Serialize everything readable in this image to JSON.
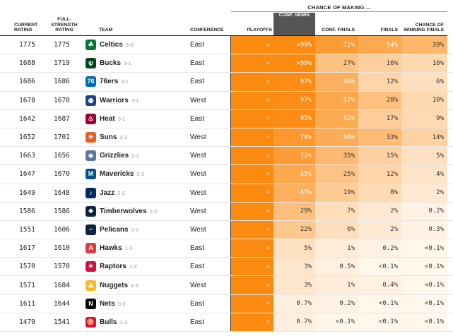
{
  "header": {
    "super_label": "CHANCE OF MAKING ...",
    "current_rating": "CURRENT RATING",
    "full_strength": "FULL-STRENGTH RATING",
    "team": "TEAM",
    "conference": "CONFERENCE",
    "playoffs": "PLAYOFFS",
    "conf_semis": "CONF. SEMIS",
    "conf_finals": "CONF. FINALS",
    "finals": "FINALS",
    "win_finals": "CHANCE OF WINNING FINALS"
  },
  "colors": {
    "heat_max": "#fb8a11",
    "heat_min": "#fff6ec",
    "sorted_header": "#555555"
  },
  "teams": [
    {
      "current": "1775",
      "full": "1775",
      "name": "Celtics",
      "record": "3-0",
      "conference": "East",
      "playoffs": "✓",
      "semis": ">99%",
      "conf_finals": "72%",
      "finals": "54%",
      "win": "39%",
      "logo": "☘",
      "logo_color": "#007a33",
      "heat": [
        100,
        100,
        72,
        54,
        39
      ]
    },
    {
      "current": "1688",
      "full": "1719",
      "name": "Bucks",
      "record": "3-1",
      "conference": "East",
      "playoffs": "✓",
      "semis": ">99%",
      "conf_finals": "27%",
      "finals": "16%",
      "win": "10%",
      "logo": "ψ",
      "logo_color": "#00471b",
      "heat": [
        100,
        100,
        27,
        16,
        10
      ]
    },
    {
      "current": "1686",
      "full": "1686",
      "name": "76ers",
      "record": "3-1",
      "conference": "East",
      "playoffs": "✓",
      "semis": "97%",
      "conf_finals": "46%",
      "finals": "12%",
      "win": "6%",
      "logo": "76",
      "logo_color": "#006bb6",
      "heat": [
        100,
        97,
        46,
        12,
        6
      ]
    },
    {
      "current": "1678",
      "full": "1670",
      "name": "Warriors",
      "record": "3-1",
      "conference": "West",
      "playoffs": "✓",
      "semis": "97%",
      "conf_finals": "57%",
      "finals": "28%",
      "win": "10%",
      "logo": "◉",
      "logo_color": "#1d428a",
      "heat": [
        100,
        97,
        57,
        28,
        10
      ]
    },
    {
      "current": "1642",
      "full": "1687",
      "name": "Heat",
      "record": "3-1",
      "conference": "East",
      "playoffs": "✓",
      "semis": "95%",
      "conf_finals": "52%",
      "finals": "17%",
      "win": "9%",
      "logo": "♨",
      "logo_color": "#98002e",
      "heat": [
        100,
        95,
        52,
        17,
        9
      ]
    },
    {
      "current": "1652",
      "full": "1701",
      "name": "Suns",
      "record": "2-2",
      "conference": "West",
      "playoffs": "✓",
      "semis": "78%",
      "conf_finals": "50%",
      "finals": "33%",
      "win": "14%",
      "logo": "☀",
      "logo_color": "#e56020",
      "heat": [
        100,
        78,
        50,
        33,
        14
      ]
    },
    {
      "current": "1663",
      "full": "1656",
      "name": "Grizzlies",
      "record": "2-2",
      "conference": "West",
      "playoffs": "✓",
      "semis": "71%",
      "conf_finals": "35%",
      "finals": "15%",
      "win": "5%",
      "logo": "◆",
      "logo_color": "#5d76a9",
      "heat": [
        100,
        71,
        35,
        15,
        5
      ]
    },
    {
      "current": "1647",
      "full": "1670",
      "name": "Mavericks",
      "record": "2-2",
      "conference": "West",
      "playoffs": "✓",
      "semis": "55%",
      "conf_finals": "25%",
      "finals": "12%",
      "win": "4%",
      "logo": "M",
      "logo_color": "#00538c",
      "heat": [
        100,
        55,
        25,
        12,
        4
      ]
    },
    {
      "current": "1649",
      "full": "1648",
      "name": "Jazz",
      "record": "2-2",
      "conference": "West",
      "playoffs": "✓",
      "semis": "45%",
      "conf_finals": "19%",
      "finals": "8%",
      "win": "2%",
      "logo": "♪",
      "logo_color": "#002b5c",
      "heat": [
        100,
        45,
        19,
        8,
        2
      ]
    },
    {
      "current": "1586",
      "full": "1586",
      "name": "Timberwolves",
      "record": "2-2",
      "conference": "West",
      "playoffs": "✓",
      "semis": "29%",
      "conf_finals": "7%",
      "finals": "2%",
      "win": "0.2%",
      "logo": "❖",
      "logo_color": "#0c2340",
      "heat": [
        100,
        29,
        7,
        2,
        0.2
      ]
    },
    {
      "current": "1551",
      "full": "1606",
      "name": "Pelicans",
      "record": "2-2",
      "conference": "West",
      "playoffs": "✓",
      "semis": "22%",
      "conf_finals": "6%",
      "finals": "2%",
      "win": "0.3%",
      "logo": "~",
      "logo_color": "#0c2340",
      "heat": [
        100,
        22,
        6,
        2,
        0.3
      ]
    },
    {
      "current": "1617",
      "full": "1610",
      "name": "Hawks",
      "record": "1-3",
      "conference": "East",
      "playoffs": "✓",
      "semis": "5%",
      "conf_finals": "1%",
      "finals": "0.2%",
      "win": "<0.1%",
      "logo": "A",
      "logo_color": "#e03a3e",
      "heat": [
        100,
        5,
        1,
        0.2,
        0
      ]
    },
    {
      "current": "1570",
      "full": "1570",
      "name": "Raptors",
      "record": "1-3",
      "conference": "East",
      "playoffs": "✓",
      "semis": "3%",
      "conf_finals": "0.5%",
      "finals": "<0.1%",
      "win": "<0.1%",
      "logo": "✶",
      "logo_color": "#ce1141",
      "heat": [
        100,
        3,
        0.5,
        0,
        0
      ]
    },
    {
      "current": "1571",
      "full": "1684",
      "name": "Nuggets",
      "record": "1-3",
      "conference": "West",
      "playoffs": "✓",
      "semis": "3%",
      "conf_finals": "1%",
      "finals": "0.4%",
      "win": "<0.1%",
      "logo": "⛰",
      "logo_color": "#fdb927",
      "heat": [
        100,
        3,
        1,
        0.4,
        0
      ]
    },
    {
      "current": "1611",
      "full": "1644",
      "name": "Nets",
      "record": "0-3",
      "conference": "East",
      "playoffs": "✓",
      "semis": "0.7%",
      "conf_finals": "0.2%",
      "finals": "<0.1%",
      "win": "<0.1%",
      "logo": "N",
      "logo_color": "#000000",
      "heat": [
        100,
        0.7,
        0.2,
        0,
        0
      ]
    },
    {
      "current": "1479",
      "full": "1541",
      "name": "Bulls",
      "record": "1-3",
      "conference": "East",
      "playoffs": "✓",
      "semis": "0.7%",
      "conf_finals": "<0.1%",
      "finals": "<0.1%",
      "win": "<0.1%",
      "logo": "♉",
      "logo_color": "#ce1141",
      "heat": [
        100,
        0.7,
        0,
        0,
        0
      ]
    }
  ]
}
